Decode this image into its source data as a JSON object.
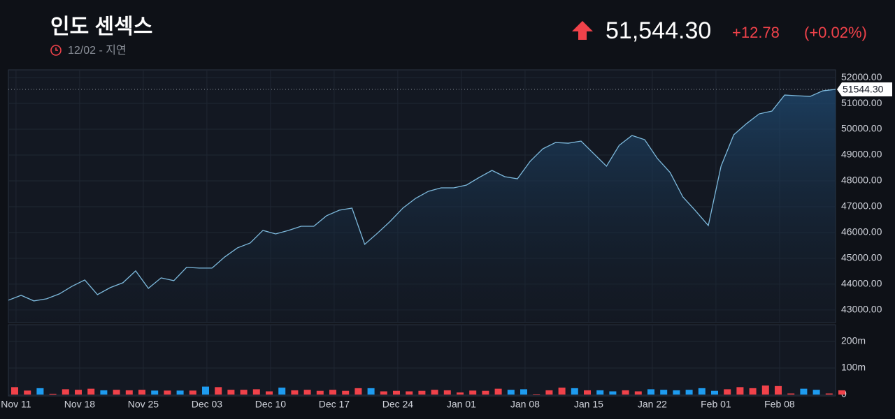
{
  "header": {
    "title": "인도 센섹스",
    "subtitle": "12/02 - 지연",
    "price": "51,544.30",
    "change": "+12.78",
    "change_pct": "(+0.02%)"
  },
  "chart_data": {
    "type": "area",
    "categories": [
      "Nov 11",
      null,
      null,
      null,
      null,
      "Nov 18",
      null,
      null,
      null,
      null,
      "Nov 25",
      null,
      null,
      null,
      null,
      "Dec 03",
      null,
      null,
      null,
      null,
      "Dec 10",
      null,
      null,
      null,
      null,
      "Dec 17",
      null,
      null,
      null,
      null,
      "Dec 24",
      null,
      null,
      null,
      null,
      "Jan 01",
      null,
      null,
      null,
      null,
      "Jan 08",
      null,
      null,
      null,
      null,
      "Jan 15",
      null,
      null,
      null,
      null,
      "Jan 22",
      null,
      null,
      null,
      null,
      "Feb 01",
      null,
      null,
      null,
      null,
      "Feb 08",
      null,
      null,
      null,
      null,
      null
    ],
    "values": [
      43378,
      43568,
      43351,
      43432,
      43622,
      43919,
      44162,
      43595,
      43865,
      44054,
      44514,
      43838,
      44243,
      44135,
      44649,
      44622,
      44622,
      45054,
      45405,
      45595,
      46081,
      45946,
      46081,
      46243,
      46243,
      46649,
      46865,
      46946,
      45541,
      45973,
      46432,
      46946,
      47324,
      47595,
      47730,
      47730,
      47838,
      48135,
      48405,
      48162,
      48081,
      48757,
      49243,
      49486,
      49459,
      49541,
      49054,
      48568,
      49378,
      49757,
      49595,
      48865,
      48324,
      47378,
      46838,
      46270,
      48568,
      49784,
      50216,
      50595,
      50703,
      51324,
      51297,
      51270,
      51487,
      51544.3
    ],
    "color": "#7db9dc",
    "last_label": "51544.30",
    "ylim": [
      42510,
      52300
    ],
    "yticks": [
      {
        "value": 43000,
        "label": "43000.00"
      },
      {
        "value": 44000,
        "label": "44000.00"
      },
      {
        "value": 45000,
        "label": "45000.00"
      },
      {
        "value": 46000,
        "label": "46000.00"
      },
      {
        "value": 47000,
        "label": "47000.00"
      },
      {
        "value": 48000,
        "label": "48000.00"
      },
      {
        "value": 49000,
        "label": "49000.00"
      },
      {
        "value": 50000,
        "label": "50000.00"
      },
      {
        "value": 51000,
        "label": "51000.00"
      },
      {
        "value": 52000,
        "label": "52000.00"
      }
    ],
    "grid": true,
    "volume": {
      "values": [
        28,
        15,
        24,
        3,
        20,
        18,
        22,
        16,
        18,
        16,
        18,
        15,
        15,
        15,
        15,
        30,
        28,
        18,
        18,
        20,
        12,
        26,
        16,
        18,
        14,
        18,
        14,
        24,
        24,
        12,
        14,
        12,
        14,
        18,
        16,
        8,
        15,
        14,
        22,
        18,
        20,
        2,
        16,
        26,
        24,
        16,
        16,
        12,
        16,
        12,
        20,
        18,
        16,
        18,
        24,
        14,
        20,
        28,
        24,
        34,
        32,
        4,
        22,
        18,
        4,
        16
      ],
      "up_color": "#f0424a",
      "down_color": "#1e9cf0",
      "ylim": [
        0,
        263
      ],
      "yticks": [
        0,
        {
          "value": 100,
          "label": "100m"
        },
        {
          "value": 200,
          "label": "200m"
        }
      ]
    }
  }
}
